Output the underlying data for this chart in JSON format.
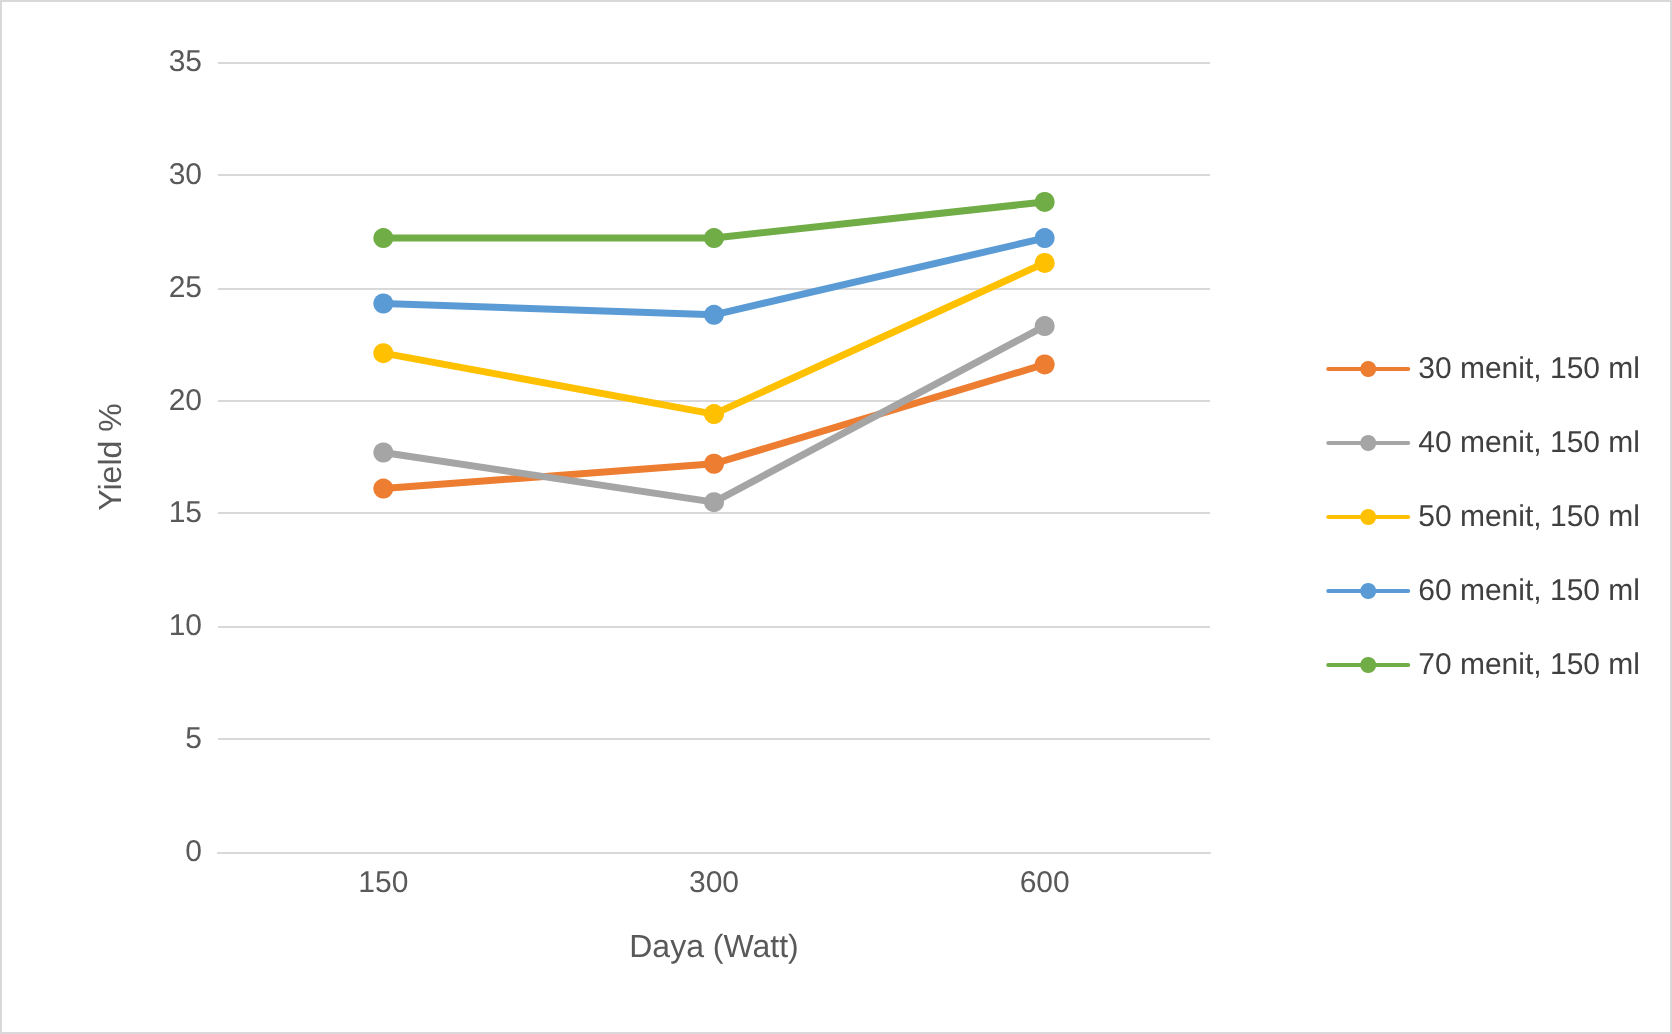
{
  "chart_data": {
    "type": "line",
    "xlabel": "Daya (Watt)",
    "ylabel": "Yield %",
    "categories": [
      "150",
      "300",
      "600"
    ],
    "series": [
      {
        "name": "30 menit, 150 ml",
        "color": "#ed7d31",
        "values": [
          16.1,
          17.2,
          21.6
        ]
      },
      {
        "name": "40 menit, 150 ml",
        "color": "#a5a5a5",
        "values": [
          17.7,
          15.5,
          23.3
        ]
      },
      {
        "name": "50 menit, 150 ml",
        "color": "#ffc000",
        "values": [
          22.1,
          19.4,
          26.1
        ]
      },
      {
        "name": "60 menit, 150 ml",
        "color": "#5b9bd5",
        "values": [
          24.3,
          23.8,
          27.2
        ]
      },
      {
        "name": "70 menit, 150 ml",
        "color": "#70ad47",
        "values": [
          27.2,
          27.2,
          28.8
        ]
      }
    ],
    "ylim": [
      0,
      35
    ],
    "yticks": [
      0,
      5,
      10,
      15,
      20,
      25,
      30,
      35
    ],
    "grid": "y",
    "legend": "right",
    "marker": "circle",
    "line_style": "solid"
  }
}
